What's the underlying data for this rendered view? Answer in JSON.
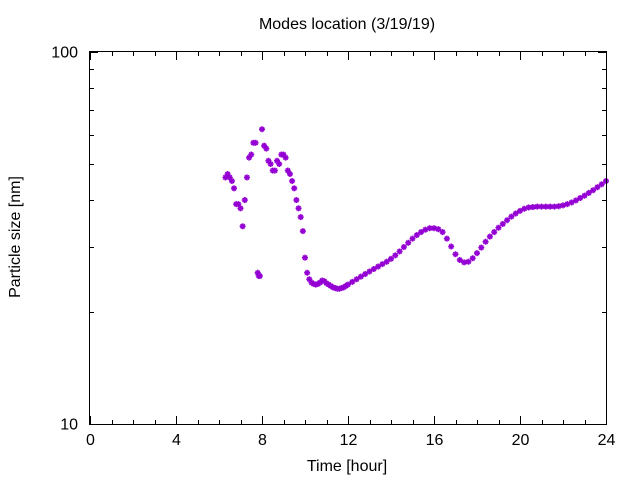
{
  "chart_data": {
    "type": "scatter",
    "title": "Modes location (3/19/19)",
    "xlabel": "Time [hour]",
    "ylabel": "Particle size [nm]",
    "xlim": [
      0,
      24
    ],
    "ylim": [
      10,
      100
    ],
    "y_scale": "log",
    "x_ticks": [
      0,
      4,
      8,
      12,
      16,
      20,
      24
    ],
    "x_tick_labels": [
      "0",
      "4",
      "8",
      "12",
      "16",
      "20",
      "24"
    ],
    "y_ticks": [
      10,
      100
    ],
    "y_tick_labels": [
      "10",
      "100"
    ],
    "grid": false,
    "legend": "none",
    "marker_color": "#9400d3",
    "series": [
      {
        "x": [
          6.3,
          6.4,
          6.5,
          6.6,
          6.7,
          6.8,
          6.9,
          7.0,
          7.1,
          7.2,
          7.3,
          7.4,
          7.5,
          7.6,
          7.7,
          7.8,
          7.85,
          7.9,
          8.0,
          8.1,
          8.2,
          8.3,
          8.4,
          8.5,
          8.6,
          8.7,
          8.8,
          8.9,
          9.0,
          9.1,
          9.2,
          9.3,
          9.4,
          9.5,
          9.6,
          9.7,
          9.8,
          9.9,
          10.0,
          10.1,
          10.2,
          10.3,
          10.4,
          10.5,
          10.6,
          10.7,
          10.8,
          10.9,
          11.0,
          11.1,
          11.2,
          11.3,
          11.4,
          11.5,
          11.6,
          11.7,
          11.8,
          11.9,
          12.0,
          12.2,
          12.4,
          12.6,
          12.8,
          13.0,
          13.2,
          13.4,
          13.6,
          13.8,
          14.0,
          14.2,
          14.4,
          14.6,
          14.8,
          15.0,
          15.2,
          15.4,
          15.6,
          15.8,
          16.0,
          16.2,
          16.4,
          16.6,
          16.8,
          17.0,
          17.2,
          17.4,
          17.6,
          17.8,
          18.0,
          18.2,
          18.4,
          18.6,
          18.8,
          19.0,
          19.2,
          19.4,
          19.6,
          19.8,
          20.0,
          20.2,
          20.4,
          20.6,
          20.8,
          21.0,
          21.2,
          21.4,
          21.6,
          21.8,
          22.0,
          22.2,
          22.4,
          22.6,
          22.8,
          23.0,
          23.2,
          23.4,
          23.6,
          23.8,
          24.0
        ],
        "y": [
          46,
          47,
          46,
          45,
          43,
          39,
          39,
          38,
          34,
          40,
          46,
          52,
          53,
          57,
          57,
          25.5,
          25,
          25,
          62,
          56,
          55,
          51,
          50,
          48,
          48,
          51,
          50,
          53,
          53,
          52,
          48,
          47,
          45,
          43,
          40,
          38,
          36,
          33,
          28,
          25.5,
          24.5,
          24,
          23.8,
          23.7,
          23.8,
          24.0,
          24.3,
          24.2,
          23.9,
          23.7,
          23.5,
          23.3,
          23.2,
          23.1,
          23.1,
          23.2,
          23.3,
          23.5,
          23.7,
          24.1,
          24.5,
          24.9,
          25.3,
          25.7,
          26.1,
          26.5,
          26.9,
          27.3,
          27.8,
          28.4,
          29.1,
          29.9,
          30.7,
          31.5,
          32.2,
          32.8,
          33.3,
          33.6,
          33.6,
          33.4,
          32.8,
          31.5,
          30.0,
          28.6,
          27.6,
          27.2,
          27.3,
          27.9,
          28.8,
          29.8,
          30.9,
          31.9,
          32.8,
          33.7,
          34.5,
          35.3,
          36.1,
          36.8,
          37.4,
          37.9,
          38.2,
          38.3,
          38.4,
          38.4,
          38.4,
          38.4,
          38.4,
          38.5,
          38.7,
          39.0,
          39.4,
          39.9,
          40.5,
          41.1,
          41.8,
          42.5,
          43.3,
          44.1,
          45.0
        ]
      }
    ]
  }
}
